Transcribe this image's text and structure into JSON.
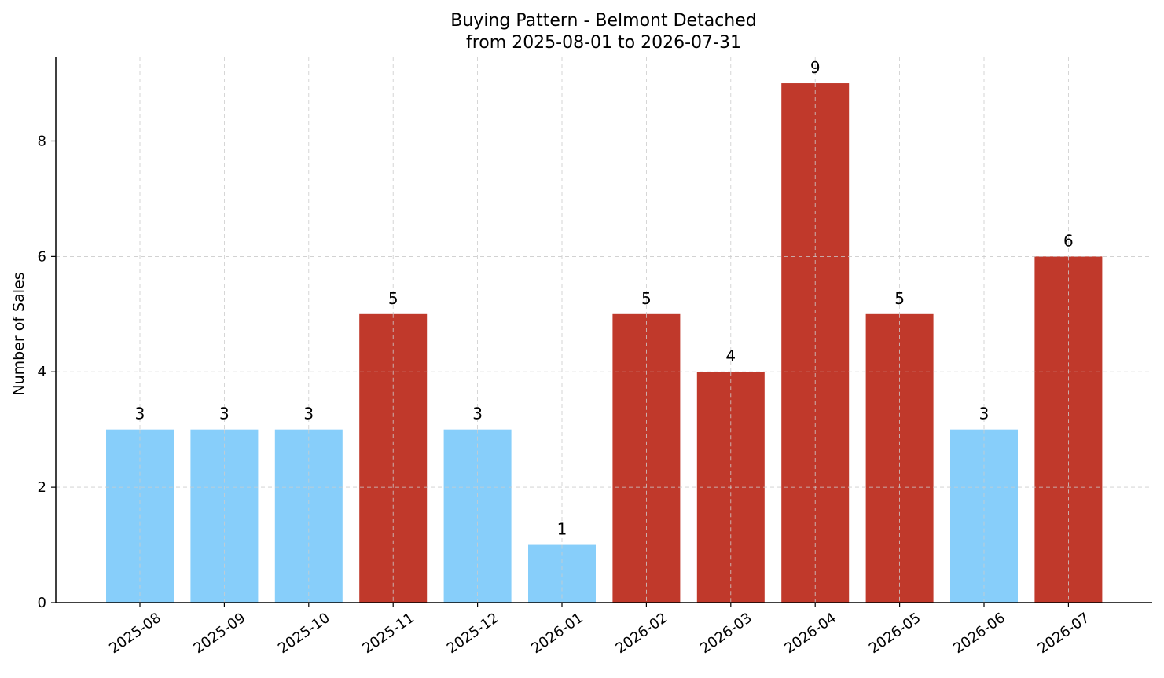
{
  "chart_data": {
    "type": "bar",
    "title": "Buying Pattern - Belmont Detached",
    "subtitle": "from 2025-08-01 to 2026-07-31",
    "xlabel": "",
    "ylabel": "Number of Sales",
    "categories": [
      "2025-08",
      "2025-09",
      "2025-10",
      "2025-11",
      "2025-12",
      "2026-01",
      "2026-02",
      "2026-03",
      "2026-04",
      "2026-05",
      "2026-06",
      "2026-07"
    ],
    "values": [
      3,
      3,
      3,
      5,
      3,
      1,
      5,
      4,
      9,
      5,
      3,
      6
    ],
    "ylim": [
      0,
      9.45
    ],
    "yticks": [
      0,
      2,
      4,
      6,
      8
    ],
    "grid": true,
    "colors": {
      "low": "#87CEFA",
      "high": "#C0392B"
    },
    "bar_color_category": [
      "low",
      "low",
      "low",
      "high",
      "low",
      "low",
      "high",
      "high",
      "high",
      "high",
      "low",
      "high"
    ]
  }
}
